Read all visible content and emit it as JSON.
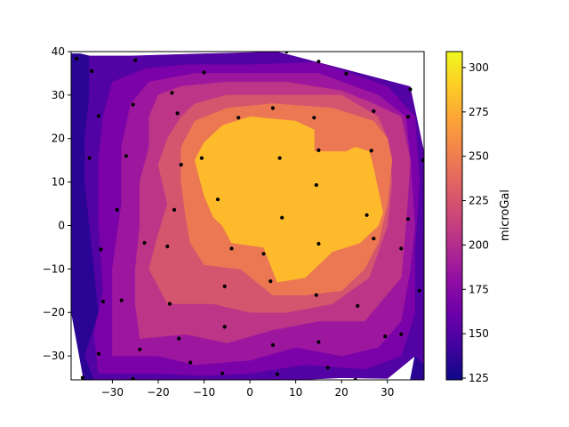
{
  "chart_data": {
    "type": "contourf",
    "xlim": [
      -39,
      38
    ],
    "ylim": [
      -35.5,
      40
    ],
    "x_ticks": [
      -30,
      -20,
      -10,
      0,
      10,
      20,
      30
    ],
    "y_ticks": [
      -30,
      -20,
      -10,
      0,
      10,
      20,
      30,
      40
    ],
    "x_tick_labels": [
      "−30",
      "−20",
      "−10",
      "0",
      "10",
      "20",
      "30"
    ],
    "y_tick_labels": [
      "−30",
      "−20",
      "−10",
      "0",
      "10",
      "20",
      "30",
      "40"
    ],
    "colorbar": {
      "label": "microGal",
      "min": 124,
      "max": 309,
      "ticks": [
        125,
        150,
        175,
        200,
        225,
        250,
        275,
        300
      ],
      "tick_labels": [
        "125",
        "150",
        "175",
        "200",
        "225",
        "250",
        "275",
        "300"
      ],
      "colormap": "plasma"
    },
    "contour_levels": [
      124,
      142.5,
      161,
      179.5,
      198,
      216.5,
      235,
      253.5,
      272,
      290.5,
      309
    ],
    "level_colors": [
      "#2a0594",
      "#5302a3",
      "#7a02a8",
      "#9c179e",
      "#bc3587",
      "#d5546e",
      "#ec7853",
      "#f89540",
      "#fdbb2b",
      "#f9d824"
    ],
    "x_label": "",
    "y_label": "",
    "title": "",
    "stations": [
      [
        -37.8,
        38.4
      ],
      [
        -25,
        38
      ],
      [
        8,
        40
      ],
      [
        15,
        37.7
      ],
      [
        21,
        34.9
      ],
      [
        35,
        31.3
      ],
      [
        -34.5,
        35.5
      ],
      [
        -17,
        30.5
      ],
      [
        -25.5,
        27.8
      ],
      [
        -10,
        35.2
      ],
      [
        5,
        27
      ],
      [
        14,
        24.8
      ],
      [
        27,
        26.3
      ],
      [
        34.5,
        25
      ],
      [
        -33,
        25.2
      ],
      [
        -15.8,
        25.8
      ],
      [
        -2.5,
        24.8
      ],
      [
        -35,
        15.5
      ],
      [
        -27,
        16
      ],
      [
        -15,
        14
      ],
      [
        -10.5,
        15.5
      ],
      [
        6.5,
        15.5
      ],
      [
        15,
        17.3
      ],
      [
        26.5,
        17.2
      ],
      [
        37.8,
        15
      ],
      [
        14.5,
        9.3
      ],
      [
        -7,
        6
      ],
      [
        7,
        1.8
      ],
      [
        -16.5,
        3.6
      ],
      [
        -29,
        3.6
      ],
      [
        25.5,
        2.4
      ],
      [
        34.5,
        1.5
      ],
      [
        -23,
        -4
      ],
      [
        -18,
        -4.8
      ],
      [
        -4,
        -5.3
      ],
      [
        15,
        -4.2
      ],
      [
        27,
        -3
      ],
      [
        -32.5,
        -5.5
      ],
      [
        33,
        -5.3
      ],
      [
        3,
        -6.5
      ],
      [
        4.5,
        -12.8
      ],
      [
        -5.5,
        -14
      ],
      [
        14.5,
        -16
      ],
      [
        37,
        -15
      ],
      [
        -32,
        -17.5
      ],
      [
        -28,
        -17.2
      ],
      [
        -17.5,
        -18
      ],
      [
        23.5,
        -18.5
      ],
      [
        -5.5,
        -23.3
      ],
      [
        -15.5,
        -26
      ],
      [
        29.5,
        -25.5
      ],
      [
        33,
        -25
      ],
      [
        -24,
        -28.5
      ],
      [
        5,
        -27.5
      ],
      [
        15,
        -26.8
      ],
      [
        -33,
        -29.5
      ],
      [
        -13,
        -31.5
      ],
      [
        17,
        -32.7
      ],
      [
        -6,
        -34
      ],
      [
        6,
        -34.2
      ],
      [
        -36.5,
        -35
      ],
      [
        -25.5,
        -35.3
      ],
      [
        23,
        -35.5
      ]
    ]
  }
}
